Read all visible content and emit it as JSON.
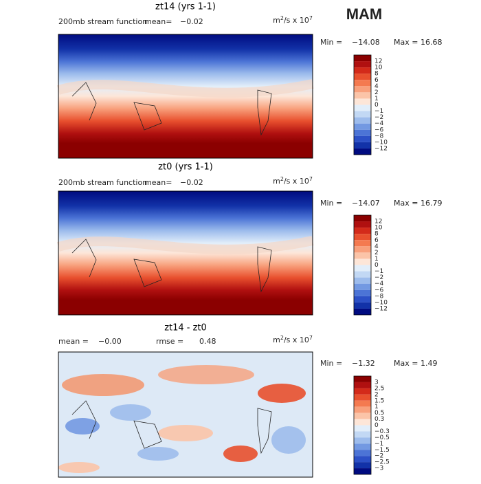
{
  "header": {
    "season": "MAM"
  },
  "panels": [
    {
      "title": "zt14 (yrs 1-1)",
      "annotations": [
        "200mb stream function",
        "mean=",
        "−0.02"
      ],
      "units": [
        "m",
        "2",
        "/s x 10",
        "7"
      ],
      "minmax": [
        "Min = ",
        "−14.08",
        "Max =",
        "16.68"
      ],
      "colorbar_labels": [
        "12",
        "10",
        "8",
        "6",
        "4",
        "2",
        "1",
        "0",
        "−1",
        "−2",
        "−4",
        "−6",
        "−8",
        "−10",
        "−12"
      ]
    },
    {
      "title": "zt0 (yrs 1-1)",
      "annotations": [
        "200mb stream function",
        "mean=",
        "−0.02"
      ],
      "units": [
        "m",
        "2",
        "/s x 10",
        "7"
      ],
      "minmax": [
        "Min = ",
        "−14.07",
        "Max =",
        "16.79"
      ],
      "colorbar_labels": [
        "12",
        "10",
        "8",
        "6",
        "4",
        "2",
        "1",
        "0",
        "−1",
        "−2",
        "−4",
        "−6",
        "−8",
        "−10",
        "−12"
      ]
    },
    {
      "title": "zt14 - zt0",
      "annotations": [
        "mean =",
        "−0.00",
        "rmse =",
        "0.48"
      ],
      "units": [
        "m",
        "2",
        "/s x 10",
        "7"
      ],
      "minmax": [
        "Min = ",
        "−1.32",
        "Max =",
        "1.49"
      ],
      "colorbar_labels": [
        "3",
        "2.5",
        "2",
        "1.5",
        "1",
        "0.5",
        "0.3",
        "0",
        "−0.3",
        "−0.5",
        "−1",
        "−1.5",
        "−2",
        "−2.5",
        "−3"
      ]
    }
  ],
  "colorbar_colors": [
    "#8b0000",
    "#b01010",
    "#d32a1a",
    "#e8502e",
    "#f47a50",
    "#f8a07c",
    "#fbc4a8",
    "#fde6d8",
    "#e2eefa",
    "#c2d8f4",
    "#9dbcec",
    "#7399e2",
    "#4c74d6",
    "#2c50c6",
    "#1232a8",
    "#000b80"
  ]
}
